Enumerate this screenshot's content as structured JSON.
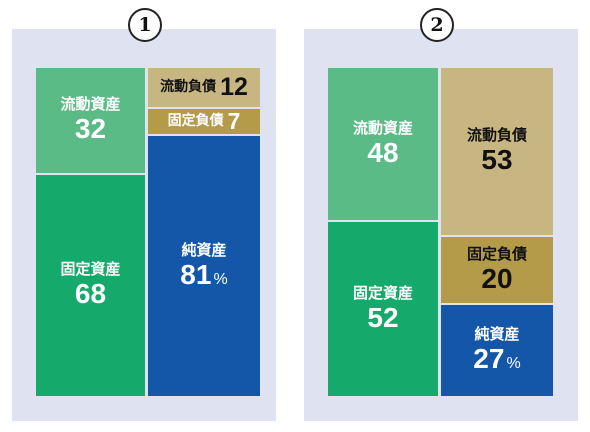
{
  "colors": {
    "panel_bg": "#dfe3f1",
    "current_assets": "#5bbb86",
    "fixed_assets": "#16a96c",
    "current_liabilities": "#c8b682",
    "fixed_liabilities": "#b39b4a",
    "net_assets": "#1456a8"
  },
  "diagram_1": {
    "badge": "1",
    "current_assets": {
      "label": "流動資産",
      "value": "32"
    },
    "fixed_assets": {
      "label": "固定資産",
      "value": "68"
    },
    "current_liabilities": {
      "label": "流動負債",
      "value": "12"
    },
    "fixed_liabilities": {
      "label": "固定負債",
      "value": "7"
    },
    "net_assets": {
      "label": "純資産",
      "value": "81",
      "unit": "%"
    }
  },
  "diagram_2": {
    "badge": "2",
    "current_assets": {
      "label": "流動資産",
      "value": "48"
    },
    "fixed_assets": {
      "label": "固定資産",
      "value": "52"
    },
    "current_liabilities": {
      "label": "流動負債",
      "value": "53"
    },
    "fixed_liabilities": {
      "label": "固定負債",
      "value": "20"
    },
    "net_assets": {
      "label": "純資産",
      "value": "27",
      "unit": "%"
    }
  }
}
